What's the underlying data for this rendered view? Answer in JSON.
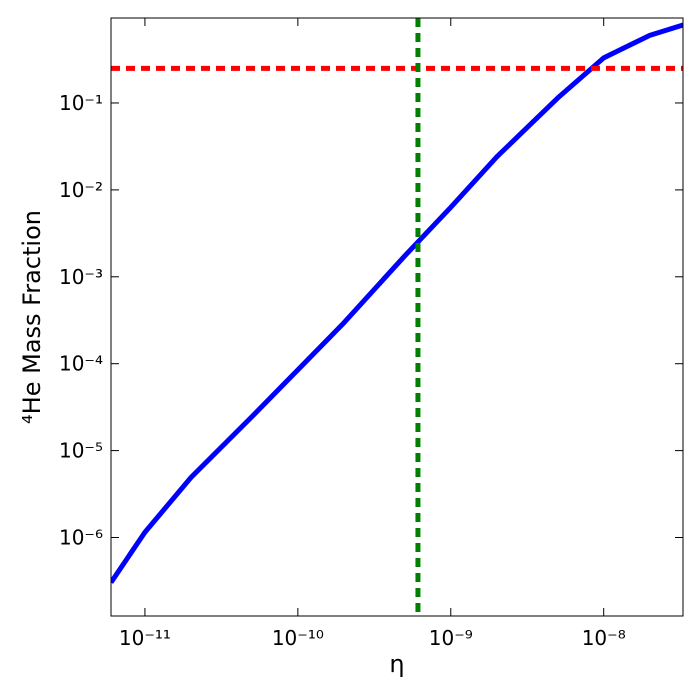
{
  "chart_data": {
    "type": "line",
    "xlabel": "η",
    "ylabel": "⁴He Mass Fraction",
    "xscale": "log",
    "yscale": "log",
    "xlim": [
      6e-12,
      3.3e-08
    ],
    "ylim": [
      1.25e-07,
      0.95
    ],
    "xticks": [
      {
        "value": 1e-11,
        "label": "10⁻¹¹"
      },
      {
        "value": 1e-10,
        "label": "10⁻¹⁰"
      },
      {
        "value": 1e-09,
        "label": "10⁻⁹"
      },
      {
        "value": 1e-08,
        "label": "10⁻⁸"
      }
    ],
    "yticks": [
      {
        "value": 1e-06,
        "label": "10⁻⁶"
      },
      {
        "value": 1e-05,
        "label": "10⁻⁵"
      },
      {
        "value": 0.0001,
        "label": "10⁻⁴"
      },
      {
        "value": 0.001,
        "label": "10⁻³"
      },
      {
        "value": 0.01,
        "label": "10⁻²"
      },
      {
        "value": 0.1,
        "label": "10⁻¹"
      }
    ],
    "x": [
      6e-12,
      1e-11,
      2e-11,
      5e-11,
      1e-10,
      2e-10,
      5e-10,
      1e-09,
      2e-09,
      5e-09,
      1e-08,
      2e-08,
      3.3e-08
    ],
    "series": [
      {
        "color": "#0000ff",
        "values": [
          3.04e-07,
          1.15e-06,
          4.9e-06,
          2.45e-05,
          8.5e-05,
          0.000295,
          0.00174,
          0.0063,
          0.024,
          0.114,
          0.33,
          0.6,
          0.79
        ]
      }
    ],
    "hline": {
      "value": 0.25,
      "color": "#ff0000"
    },
    "vline": {
      "value": 6.1e-10,
      "color": "#008000"
    }
  }
}
